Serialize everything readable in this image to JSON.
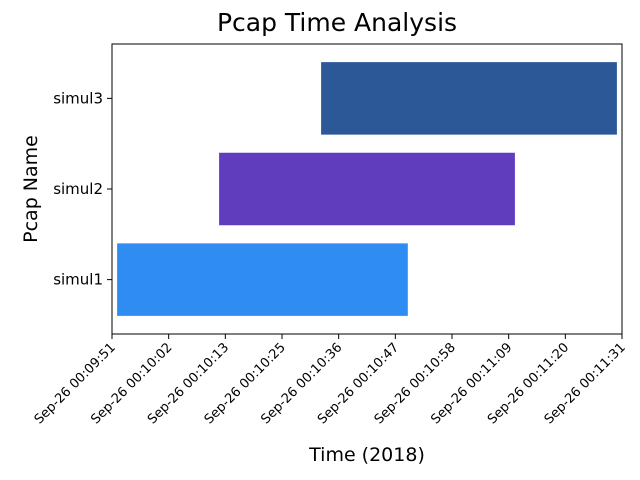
{
  "chart_data": {
    "type": "gantt",
    "title": "Pcap Time Analysis",
    "xlabel": "Time (2018)",
    "ylabel": "Pcap Name",
    "xlim": [
      "2018-09-26T00:09:51",
      "2018-09-26T00:11:31"
    ],
    "x_tick_labels": [
      "Sep-26  00:09:51",
      "Sep-26  00:10:02",
      "Sep-26  00:10:13",
      "Sep-26  00:10:25",
      "Sep-26  00:10:36",
      "Sep-26  00:10:47",
      "Sep-26  00:10:58",
      "Sep-26  00:11:09",
      "Sep-26  00:11:20",
      "Sep-26  00:11:31"
    ],
    "categories": [
      "simul1",
      "simul2",
      "simul3"
    ],
    "bars": [
      {
        "label": "simul1",
        "start": "2018-09-26T00:09:52",
        "end": "2018-09-26T00:10:49",
        "color": "#2f8cf2"
      },
      {
        "label": "simul2",
        "start": "2018-09-26T00:10:12",
        "end": "2018-09-26T00:11:10",
        "color": "#5f3dbd"
      },
      {
        "label": "simul3",
        "start": "2018-09-26T00:10:32",
        "end": "2018-09-26T00:11:30",
        "color": "#2c5898"
      }
    ],
    "grid": false,
    "legend": "none"
  }
}
